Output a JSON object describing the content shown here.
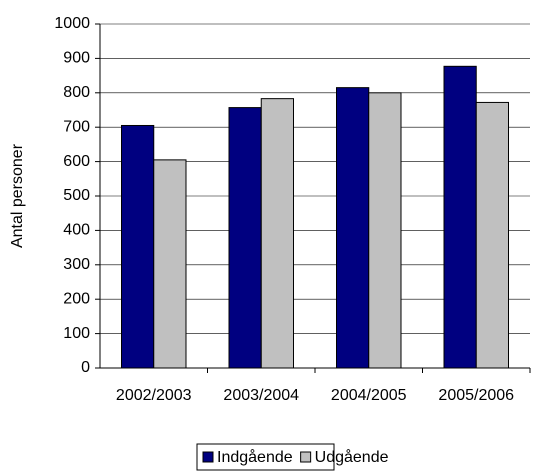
{
  "chart_data": {
    "type": "bar",
    "y_label": "Antal personer",
    "categories": [
      "2002/2003",
      "2003/2004",
      "2004/2005",
      "2005/2006"
    ],
    "series": [
      {
        "name": "Indgående",
        "color": "#000080",
        "values": [
          705,
          757,
          815,
          877
        ]
      },
      {
        "name": "Udgående",
        "color": "#c0c0c0",
        "values": [
          605,
          783,
          800,
          772
        ]
      }
    ],
    "ylim": [
      0,
      1000
    ],
    "yticks": [
      0,
      100,
      200,
      300,
      400,
      500,
      600,
      700,
      800,
      900,
      1000
    ],
    "grid": true,
    "legend": "bottom"
  }
}
